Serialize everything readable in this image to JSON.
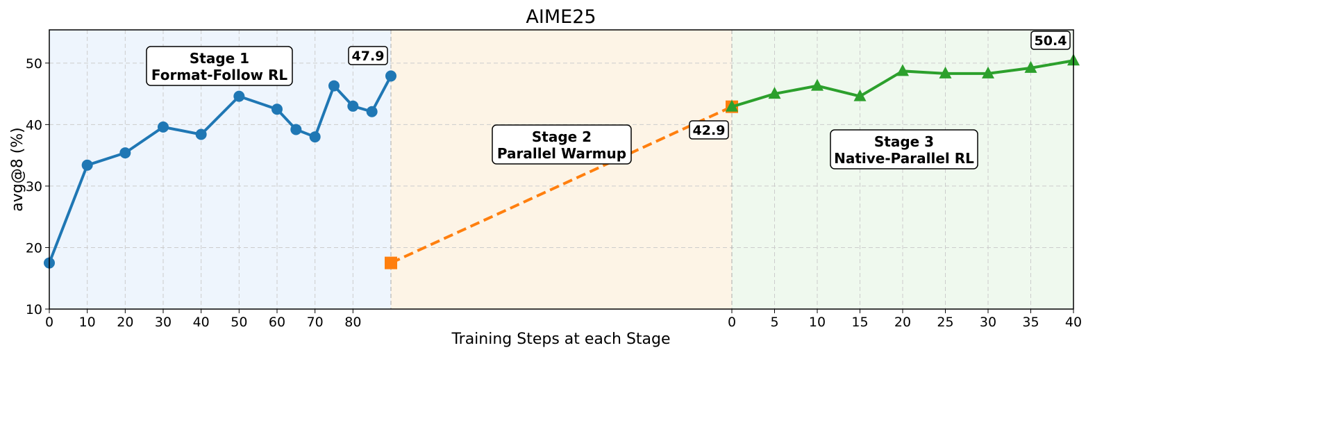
{
  "chart_data": {
    "type": "line",
    "title": "AIME25",
    "xlabel": "Training Steps at each Stage",
    "ylabel": "avg@8 (%)",
    "ylim": [
      10,
      55.4
    ],
    "yticks": [
      10,
      20,
      30,
      40,
      50
    ],
    "grid": true,
    "stages": [
      {
        "label_line1": "Stage 1",
        "label_line2": "Format-Follow RL",
        "background": "#eef5fd",
        "color": "#1f77b4",
        "marker": "circle",
        "line_style": "solid",
        "xlim": [
          0,
          90
        ],
        "xticks": [
          0,
          10,
          20,
          30,
          40,
          50,
          60,
          70,
          80
        ],
        "x": [
          0,
          10,
          20,
          30,
          40,
          50,
          60,
          65,
          70,
          75,
          80,
          85,
          90
        ],
        "y": [
          17.5,
          33.4,
          35.4,
          39.6,
          38.4,
          44.6,
          42.5,
          39.2,
          38.0,
          46.3,
          43.0,
          42.1,
          47.9
        ],
        "end_annotation": "47.9"
      },
      {
        "label_line1": "Stage 2",
        "label_line2": "Parallel Warmup",
        "background": "#fdf4e6",
        "color": "#ff7f0e",
        "marker": "square",
        "line_style": "dashed",
        "y": [
          17.5,
          42.9
        ],
        "end_annotation": "42.9"
      },
      {
        "label_line1": "Stage 3",
        "label_line2": "Native-Parallel RL",
        "background": "#eff9ee",
        "color": "#2ca02c",
        "marker": "triangle",
        "line_style": "solid",
        "xlim": [
          0,
          40
        ],
        "xticks": [
          0,
          5,
          10,
          15,
          20,
          25,
          30,
          35,
          40
        ],
        "x": [
          0,
          5,
          10,
          15,
          20,
          25,
          30,
          35,
          40
        ],
        "y": [
          42.9,
          45.0,
          46.3,
          44.6,
          48.7,
          48.3,
          48.3,
          49.2,
          50.4
        ],
        "end_annotation": "50.4"
      }
    ]
  }
}
